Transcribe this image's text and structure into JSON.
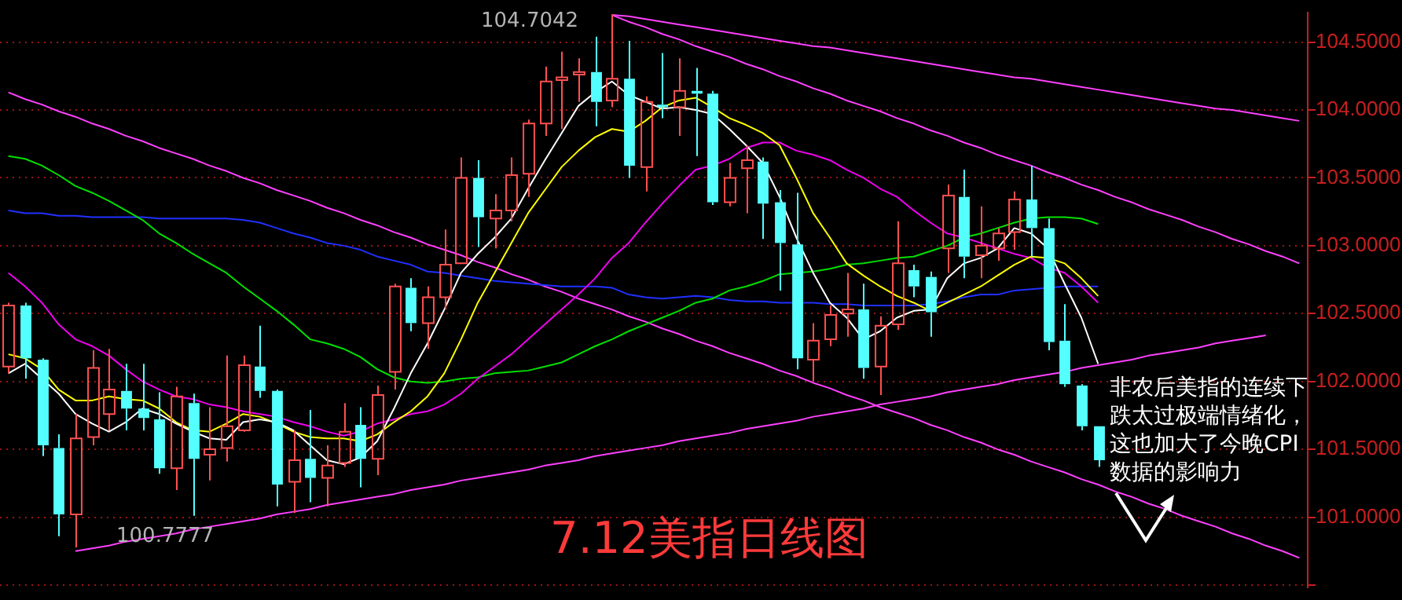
{
  "chart_data": {
    "type": "candlestick",
    "title": "7.12美指日线图",
    "categories": [
      null,
      null,
      null,
      null,
      null,
      null,
      null,
      null,
      null,
      null,
      null,
      null,
      null,
      null,
      null,
      null,
      null,
      null,
      null,
      null,
      null,
      null,
      null,
      null,
      null,
      null,
      null,
      null,
      null,
      null,
      null,
      null,
      null,
      null,
      null,
      null,
      null,
      null,
      null,
      null,
      null,
      null,
      null,
      null,
      null,
      null,
      null,
      null,
      null,
      null,
      null,
      null,
      null,
      null,
      null,
      null,
      null,
      null,
      null,
      null,
      null,
      null,
      null,
      null,
      null,
      null,
      null,
      null,
      null,
      null,
      null,
      null,
      null,
      null,
      null,
      null,
      null,
      null
    ],
    "ohlc": [
      [
        102.11,
        102.58,
        102.06,
        102.56
      ],
      [
        102.56,
        102.58,
        102.02,
        102.17
      ],
      [
        102.16,
        102.17,
        101.45,
        101.53
      ],
      [
        101.51,
        101.61,
        100.86,
        101.02
      ],
      [
        101.02,
        101.76,
        100.7777,
        101.58
      ],
      [
        101.59,
        102.23,
        101.53,
        102.1
      ],
      [
        101.76,
        102.24,
        101.64,
        101.94
      ],
      [
        101.93,
        102.13,
        101.64,
        101.8
      ],
      [
        101.8,
        102.13,
        101.64,
        101.73
      ],
      [
        101.72,
        101.92,
        101.32,
        101.36
      ],
      [
        101.36,
        101.96,
        101.2,
        101.89
      ],
      [
        101.84,
        101.91,
        101.01,
        101.43
      ],
      [
        101.46,
        101.81,
        101.27,
        101.5
      ],
      [
        101.51,
        102.19,
        101.41,
        101.67
      ],
      [
        101.64,
        102.19,
        101.63,
        102.12
      ],
      [
        102.11,
        102.41,
        101.88,
        101.93
      ],
      [
        101.93,
        101.94,
        101.08,
        101.24
      ],
      [
        101.26,
        101.64,
        101.03,
        101.42
      ],
      [
        101.43,
        101.79,
        101.11,
        101.29
      ],
      [
        101.29,
        101.53,
        101.08,
        101.38
      ],
      [
        101.4,
        101.84,
        101.37,
        101.63
      ],
      [
        101.68,
        101.81,
        101.22,
        101.43
      ],
      [
        101.43,
        101.97,
        101.31,
        101.9
      ],
      [
        102.07,
        102.72,
        101.94,
        102.7
      ],
      [
        102.69,
        102.76,
        102.37,
        102.43
      ],
      [
        102.43,
        102.7,
        102.24,
        102.62
      ],
      [
        102.62,
        103.12,
        102.53,
        102.86
      ],
      [
        102.87,
        103.65,
        102.87,
        103.5
      ],
      [
        103.5,
        103.63,
        102.99,
        103.21
      ],
      [
        103.2,
        103.38,
        102.98,
        103.26
      ],
      [
        103.26,
        103.65,
        103.18,
        103.52
      ],
      [
        103.53,
        103.93,
        103.36,
        103.9
      ],
      [
        103.9,
        104.32,
        103.81,
        104.21
      ],
      [
        104.22,
        104.43,
        103.86,
        104.24
      ],
      [
        104.26,
        104.38,
        104.06,
        104.28
      ],
      [
        104.28,
        104.54,
        103.88,
        104.06
      ],
      [
        104.07,
        104.7042,
        104.02,
        104.23
      ],
      [
        104.23,
        104.51,
        103.5,
        103.59
      ],
      [
        103.58,
        104.1,
        103.4,
        104.06
      ],
      [
        104.04,
        104.42,
        103.94,
        104.02
      ],
      [
        104.02,
        104.38,
        103.81,
        104.14
      ],
      [
        104.14,
        104.31,
        103.66,
        104.12
      ],
      [
        104.12,
        104.14,
        103.3,
        103.32
      ],
      [
        103.32,
        103.61,
        103.29,
        103.5
      ],
      [
        103.57,
        103.74,
        103.24,
        103.63
      ],
      [
        103.62,
        103.65,
        103.05,
        103.31
      ],
      [
        103.32,
        103.41,
        102.67,
        103.02
      ],
      [
        103.01,
        103.39,
        102.09,
        102.17
      ],
      [
        102.16,
        102.43,
        102.0,
        102.3
      ],
      [
        102.31,
        102.56,
        102.26,
        102.49
      ],
      [
        102.5,
        102.8,
        102.33,
        102.53
      ],
      [
        102.53,
        102.72,
        102.02,
        102.1
      ],
      [
        102.11,
        102.48,
        101.9,
        102.41
      ],
      [
        102.42,
        103.18,
        102.38,
        102.87
      ],
      [
        102.82,
        102.86,
        102.62,
        102.7
      ],
      [
        102.77,
        102.81,
        102.33,
        102.51
      ],
      [
        102.98,
        103.45,
        102.8,
        103.37
      ],
      [
        103.36,
        103.56,
        102.76,
        102.92
      ],
      [
        102.93,
        103.29,
        102.76,
        103.0
      ],
      [
        102.98,
        103.13,
        102.89,
        103.09
      ],
      [
        103.1,
        103.4,
        102.97,
        103.34
      ],
      [
        103.34,
        103.59,
        102.92,
        103.13
      ],
      [
        103.13,
        103.2,
        102.23,
        102.29
      ],
      [
        102.3,
        102.57,
        101.96,
        101.98
      ],
      [
        101.97,
        101.98,
        101.64,
        101.67
      ],
      [
        101.67,
        101.67,
        101.37,
        101.42
      ],
      null,
      null,
      null,
      null,
      null,
      null,
      null,
      null,
      null,
      null,
      null,
      null
    ],
    "colors": [
      "#ff5050",
      "#54ffff",
      "#54ffff",
      "#54ffff",
      "#ff5050",
      "#ff5050",
      "#ff5050",
      "#54ffff",
      "#54ffff",
      "#54ffff",
      "#ff5050",
      "#54ffff",
      "#ff5050",
      "#ff5050",
      "#ff5050",
      "#54ffff",
      "#54ffff",
      "#ff5050",
      "#54ffff",
      "#ff5050",
      "#ff5050",
      "#54ffff",
      "#ff5050",
      "#ff5050",
      "#54ffff",
      "#ff5050",
      "#ff5050",
      "#ff5050",
      "#54ffff",
      "#ff5050",
      "#ff5050",
      "#ff5050",
      "#ff5050",
      "#ff5050",
      "#ff5050",
      "#54ffff",
      "#ff5050",
      "#54ffff",
      "#ff5050",
      "#54ffff",
      "#ff5050",
      "#54ffff",
      "#54ffff",
      "#ff5050",
      "#ff5050",
      "#54ffff",
      "#54ffff",
      "#54ffff",
      "#ff5050",
      "#ff5050",
      "#ff5050",
      "#54ffff",
      "#ff5050",
      "#ff5050",
      "#54ffff",
      "#54ffff",
      "#ff5050",
      "#54ffff",
      "#ff5050",
      "#ff5050",
      "#ff5050",
      "#54ffff",
      "#54ffff",
      "#54ffff",
      "#54ffff",
      "#54ffff",
      null,
      null,
      null,
      null,
      null,
      null,
      null,
      null,
      null,
      null,
      null,
      null
    ],
    "series": [
      {
        "type": "line",
        "color": "#ffffff",
        "values": [
          102.06,
          102.13,
          102.02,
          101.91,
          101.76,
          101.69,
          101.63,
          101.7,
          101.8,
          101.76,
          101.69,
          101.63,
          101.58,
          101.57,
          101.7,
          101.72,
          101.7,
          101.64,
          101.53,
          101.42,
          101.39,
          101.44,
          101.56,
          101.8,
          102.06,
          102.28,
          102.53,
          102.8,
          102.94,
          103.06,
          103.2,
          103.42,
          103.63,
          103.83,
          104.03,
          104.13,
          104.21,
          104.11,
          104.06,
          104.01,
          104.02,
          104.0,
          103.97,
          103.86,
          103.74,
          103.61,
          103.36,
          103.06,
          102.8,
          102.58,
          102.47,
          102.31,
          102.37,
          102.47,
          102.52,
          102.53,
          102.76,
          102.87,
          102.91,
          102.98,
          103.13,
          103.09,
          102.98,
          102.72,
          102.47,
          102.13,
          null,
          null,
          null,
          null,
          null,
          null,
          null,
          null,
          null,
          null,
          null,
          null
        ]
      },
      {
        "type": "line",
        "color": "#ffff00",
        "values": [
          102.2,
          102.17,
          102.09,
          101.94,
          101.86,
          101.86,
          101.89,
          101.87,
          101.86,
          101.8,
          101.7,
          101.64,
          101.63,
          101.69,
          101.76,
          101.74,
          101.69,
          101.63,
          101.59,
          101.58,
          101.58,
          101.56,
          101.61,
          101.7,
          101.78,
          101.89,
          102.06,
          102.31,
          102.58,
          102.8,
          103.02,
          103.24,
          103.41,
          103.58,
          103.7,
          103.8,
          103.86,
          103.84,
          103.92,
          104.02,
          104.07,
          104.09,
          104.02,
          103.94,
          103.89,
          103.83,
          103.74,
          103.5,
          103.24,
          103.06,
          102.87,
          102.78,
          102.7,
          102.63,
          102.58,
          102.52,
          102.58,
          102.64,
          102.7,
          102.78,
          102.86,
          102.92,
          102.91,
          102.87,
          102.76,
          102.63,
          null,
          null,
          null,
          null,
          null,
          null,
          null,
          null,
          null,
          null,
          null,
          null
        ]
      },
      {
        "type": "line",
        "color": "#ee00ee",
        "values": [
          102.8,
          102.7,
          102.58,
          102.42,
          102.31,
          102.26,
          102.19,
          102.09,
          102.0,
          101.94,
          101.89,
          101.87,
          101.83,
          101.81,
          101.78,
          101.76,
          101.74,
          101.7,
          101.67,
          101.63,
          101.6,
          101.63,
          101.69,
          101.72,
          101.76,
          101.78,
          101.83,
          101.91,
          102.02,
          102.11,
          102.2,
          102.31,
          102.42,
          102.53,
          102.64,
          102.76,
          102.91,
          103.02,
          103.17,
          103.31,
          103.44,
          103.56,
          103.59,
          103.64,
          103.72,
          103.76,
          103.76,
          103.7,
          103.67,
          103.63,
          103.56,
          103.5,
          103.42,
          103.36,
          103.26,
          103.17,
          103.09,
          103.06,
          103.02,
          102.98,
          102.94,
          102.91,
          102.84,
          102.8,
          102.7,
          102.58,
          null,
          null,
          null,
          null,
          null,
          null,
          null,
          null,
          null,
          null,
          null,
          null
        ]
      },
      {
        "type": "line",
        "color": "#00e000",
        "values": [
          103.66,
          103.64,
          103.59,
          103.52,
          103.44,
          103.39,
          103.33,
          103.26,
          103.19,
          103.09,
          103.02,
          102.94,
          102.87,
          102.8,
          102.7,
          102.61,
          102.52,
          102.42,
          102.31,
          102.28,
          102.24,
          102.18,
          102.09,
          102.03,
          102.0,
          101.99,
          102.0,
          102.02,
          102.03,
          102.06,
          102.07,
          102.08,
          102.11,
          102.14,
          102.2,
          102.26,
          102.31,
          102.37,
          102.42,
          102.47,
          102.52,
          102.58,
          102.61,
          102.67,
          102.7,
          102.74,
          102.79,
          102.8,
          102.81,
          102.83,
          102.86,
          102.87,
          102.89,
          102.91,
          102.92,
          102.96,
          103.0,
          103.06,
          103.09,
          103.13,
          103.17,
          103.2,
          103.21,
          103.21,
          103.2,
          103.16,
          null,
          null,
          null,
          null,
          null,
          null,
          null,
          null,
          null,
          null,
          null,
          null
        ]
      },
      {
        "type": "line",
        "color": "#2030ff",
        "values": [
          103.26,
          103.24,
          103.24,
          103.22,
          103.22,
          103.21,
          103.21,
          103.21,
          103.21,
          103.2,
          103.2,
          103.2,
          103.2,
          103.2,
          103.19,
          103.17,
          103.13,
          103.09,
          103.06,
          103.02,
          103.0,
          102.97,
          102.92,
          102.89,
          102.86,
          102.81,
          102.8,
          102.78,
          102.76,
          102.74,
          102.73,
          102.72,
          102.71,
          102.7,
          102.7,
          102.7,
          102.69,
          102.64,
          102.62,
          102.61,
          102.62,
          102.63,
          102.62,
          102.6,
          102.59,
          102.59,
          102.58,
          102.58,
          102.58,
          102.57,
          102.57,
          102.56,
          102.56,
          102.56,
          102.56,
          102.57,
          102.59,
          102.62,
          102.64,
          102.64,
          102.67,
          102.68,
          102.69,
          102.7,
          102.7,
          102.7,
          null,
          null,
          null,
          null,
          null,
          null,
          null,
          null,
          null,
          null,
          null,
          null
        ]
      },
      {
        "type": "line",
        "color": "#ff40ff",
        "values": [
          104.13,
          104.08,
          104.04,
          103.99,
          103.95,
          103.9,
          103.86,
          103.81,
          103.77,
          103.72,
          103.68,
          103.64,
          103.59,
          103.55,
          103.5,
          103.46,
          103.41,
          103.37,
          103.33,
          103.28,
          103.24,
          103.19,
          103.15,
          103.1,
          103.06,
          103.01,
          102.97,
          102.93,
          102.88,
          102.84,
          102.79,
          102.75,
          102.7,
          102.66,
          102.61,
          102.57,
          102.53,
          102.48,
          102.44,
          102.39,
          102.35,
          102.3,
          102.26,
          102.21,
          102.17,
          102.13,
          102.08,
          102.04,
          101.99,
          101.95,
          101.9,
          101.86,
          101.81,
          101.77,
          101.73,
          101.68,
          101.64,
          101.59,
          101.55,
          101.5,
          101.46,
          101.41,
          101.37,
          101.33,
          101.28,
          101.24,
          101.19,
          101.15,
          101.1,
          101.06,
          101.01,
          100.97,
          100.93,
          100.88,
          100.84,
          100.79,
          100.75,
          100.7
        ]
      },
      {
        "type": "line",
        "color": "#ff40ff",
        "values": [
          null,
          null,
          null,
          null,
          100.75,
          100.77,
          100.79,
          100.82,
          100.84,
          100.86,
          100.88,
          100.91,
          100.93,
          100.95,
          100.97,
          100.99,
          101.02,
          101.04,
          101.06,
          101.09,
          101.11,
          101.13,
          101.15,
          101.17,
          101.2,
          101.22,
          101.24,
          101.27,
          101.29,
          101.31,
          101.33,
          101.35,
          101.38,
          101.4,
          101.42,
          101.45,
          101.47,
          101.49,
          101.51,
          101.53,
          101.56,
          101.58,
          101.6,
          101.62,
          101.65,
          101.67,
          101.69,
          101.71,
          101.74,
          101.76,
          101.78,
          101.8,
          101.83,
          101.85,
          101.87,
          101.89,
          101.92,
          101.94,
          101.96,
          101.98,
          102.01,
          102.03,
          102.05,
          102.07,
          102.1,
          102.12,
          102.14,
          102.16,
          102.19,
          102.21,
          102.23,
          102.25,
          102.28,
          102.3,
          102.32,
          102.34,
          null,
          null
        ]
      },
      {
        "type": "line",
        "color": "#ff40ff",
        "values": [
          null,
          null,
          null,
          null,
          null,
          null,
          null,
          null,
          null,
          null,
          null,
          null,
          null,
          null,
          null,
          null,
          null,
          null,
          null,
          null,
          null,
          null,
          null,
          null,
          null,
          null,
          null,
          null,
          null,
          null,
          null,
          null,
          null,
          null,
          null,
          null,
          104.7,
          104.65,
          104.61,
          104.56,
          104.52,
          104.47,
          104.43,
          104.39,
          104.34,
          104.3,
          104.25,
          104.21,
          104.16,
          104.12,
          104.07,
          104.03,
          103.99,
          103.94,
          103.9,
          103.85,
          103.81,
          103.76,
          103.72,
          103.67,
          103.63,
          103.59,
          103.54,
          103.5,
          103.45,
          103.41,
          103.36,
          103.32,
          103.27,
          103.23,
          103.19,
          103.14,
          103.1,
          103.05,
          103.01,
          102.96,
          102.92,
          102.87
        ]
      },
      {
        "type": "line",
        "color": "#ff40ff",
        "values": [
          null,
          null,
          null,
          null,
          null,
          null,
          null,
          null,
          null,
          null,
          null,
          null,
          null,
          null,
          null,
          null,
          null,
          null,
          null,
          null,
          null,
          null,
          null,
          null,
          null,
          null,
          null,
          null,
          null,
          null,
          null,
          null,
          null,
          null,
          null,
          null,
          104.7,
          104.69,
          104.67,
          104.65,
          104.63,
          104.61,
          104.59,
          104.57,
          104.55,
          104.53,
          104.51,
          104.49,
          104.47,
          104.46,
          104.44,
          104.42,
          104.4,
          104.38,
          104.36,
          104.34,
          104.32,
          104.3,
          104.28,
          104.26,
          104.24,
          104.23,
          104.21,
          104.19,
          104.17,
          104.15,
          104.13,
          104.11,
          104.09,
          104.07,
          104.05,
          104.03,
          104.01,
          104.0,
          103.98,
          103.96,
          103.94,
          103.92
        ]
      }
    ],
    "ylim": [
      100.48,
      104.72
    ],
    "yticks": [
      {
        "value": 100.5,
        "label": null
      },
      {
        "value": 101,
        "label": "101.0000"
      },
      {
        "value": 101.5,
        "label": "101.5000"
      },
      {
        "value": 102,
        "label": "102.0000"
      },
      {
        "value": 102.5,
        "label": "102.5000"
      },
      {
        "value": 103,
        "label": "103.0000"
      },
      {
        "value": 103.5,
        "label": "103.5000"
      },
      {
        "value": 104,
        "label": "104.0000"
      },
      {
        "value": 104.5,
        "label": "104.5000"
      }
    ],
    "grid": "y",
    "legend": false,
    "tick_labels": "y",
    "marker": "none",
    "line_style": "solid",
    "annotations": [
      "104.7042",
      "100.7777",
      "非农后美指的连续下跌太过极端情绪化，这也加大了今晚CPI数据的影响力"
    ]
  }
}
